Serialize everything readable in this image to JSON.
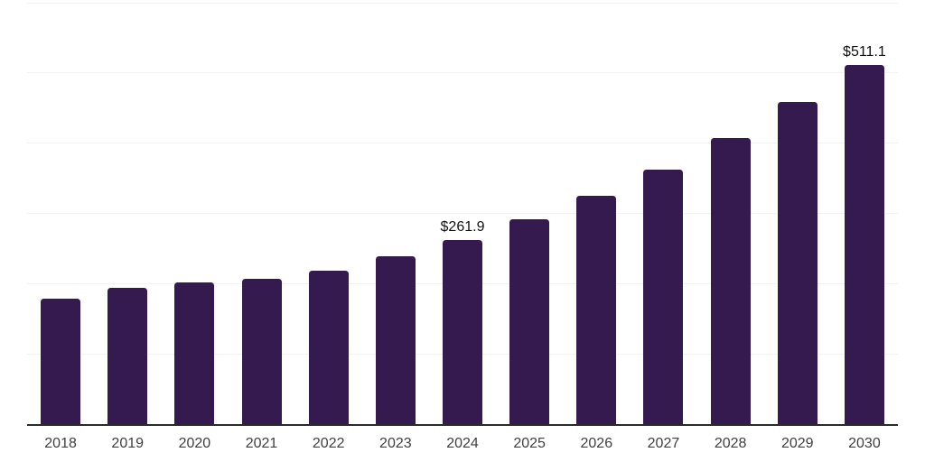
{
  "chart_data": {
    "type": "bar",
    "title": "",
    "xlabel": "",
    "ylabel": "",
    "categories": [
      "2018",
      "2019",
      "2020",
      "2021",
      "2022",
      "2023",
      "2024",
      "2025",
      "2026",
      "2027",
      "2028",
      "2029",
      "2030"
    ],
    "values": [
      178.2,
      194.1,
      201.7,
      206.0,
      218.8,
      239.2,
      261.9,
      291.3,
      325.3,
      362.4,
      407.2,
      457.6,
      511.1
    ],
    "data_labels": {
      "2024": "$261.9",
      "2030": "$511.1"
    },
    "ylim": [
      0,
      600
    ],
    "gridline_step": 100,
    "grid": true,
    "legend": false,
    "y_tick_labels_visible": false,
    "bar_color": "#341a4e",
    "axis_color": "#2a2a2a",
    "gridline_color": "#f2f2f2",
    "data_label_color": "#111111",
    "tick_label_color": "#3f3f3f",
    "background_color": "#ffffff"
  }
}
